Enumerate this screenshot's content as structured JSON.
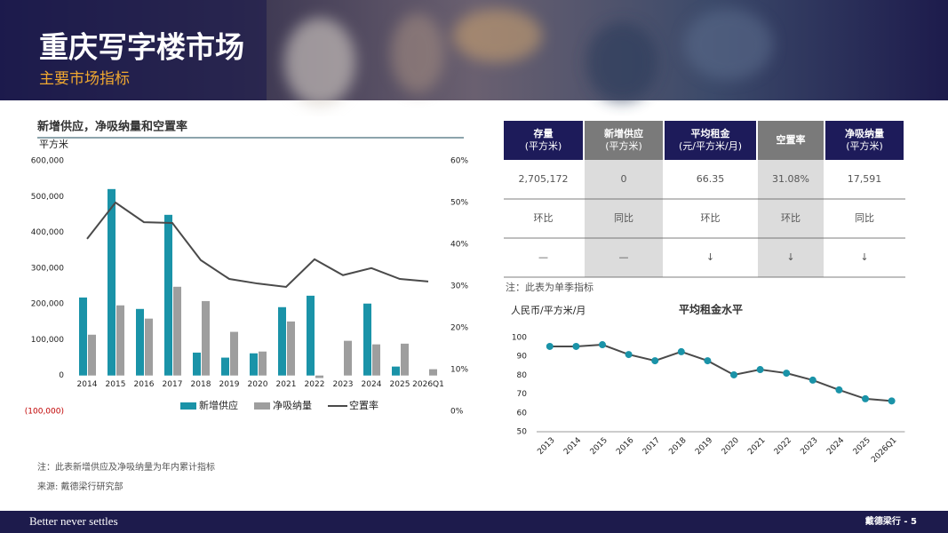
{
  "header": {
    "title": "重庆写字楼市场",
    "subtitle": "主要市场指标"
  },
  "chart_data": [
    {
      "type": "bar",
      "title": "新增供应，净吸纳量和空置率",
      "y_label": "平方米",
      "categories": [
        "2014",
        "2015",
        "2016",
        "2017",
        "2018",
        "2019",
        "2020",
        "2021",
        "2022",
        "2023",
        "2024",
        "2025",
        "2026Q1"
      ],
      "series": [
        {
          "name": "新增供应",
          "color": "#1a93a8",
          "values": [
            218000,
            521000,
            186000,
            449000,
            64000,
            50000,
            62000,
            191000,
            223000,
            0,
            201000,
            25000,
            0
          ]
        },
        {
          "name": "净吸纳量",
          "color": "#9e9e9e",
          "values": [
            114000,
            196000,
            159000,
            248000,
            208000,
            122000,
            67000,
            151000,
            -7000,
            97000,
            87000,
            89000,
            17591
          ]
        },
        {
          "name": "空置率",
          "color": "#4a4a4a",
          "type": "line",
          "axis": "y2",
          "values": [
            41.3,
            50.0,
            45.3,
            45.1,
            36.2,
            31.7,
            30.6,
            29.8,
            36.4,
            32.6,
            34.3,
            31.7,
            31.08
          ]
        }
      ],
      "ylim": [
        -100000,
        600000
      ],
      "yticks": [
        {
          "value": -100000,
          "label": "(100,000)"
        },
        0,
        {
          "value": 100000,
          "label": "100,000"
        },
        {
          "value": 200000,
          "label": "200,000"
        },
        {
          "value": 300000,
          "label": "300,000"
        },
        {
          "value": 400000,
          "label": "400,000"
        },
        {
          "value": 500000,
          "label": "500,000"
        },
        {
          "value": 600000,
          "label": "600,000"
        }
      ],
      "y2lim": [
        0,
        60
      ],
      "y2ticks": [
        {
          "value": 0,
          "label": "0%"
        },
        {
          "value": 10,
          "label": "10%"
        },
        {
          "value": 20,
          "label": "20%"
        },
        {
          "value": 30,
          "label": "30%"
        },
        {
          "value": 40,
          "label": "40%"
        },
        {
          "value": 50,
          "label": "50%"
        },
        {
          "value": 60,
          "label": "60%"
        }
      ],
      "legend": "bottom",
      "grid": false
    },
    {
      "type": "line",
      "title": "平均租金水平",
      "y_label": "人民币/平方米/月",
      "categories": [
        "2013",
        "2014",
        "2015",
        "2016",
        "2017",
        "2018",
        "2019",
        "2020",
        "2021",
        "2022",
        "2023",
        "2024",
        "2025",
        "2026Q1"
      ],
      "series": [
        {
          "name": null,
          "color": "#4a4a4a",
          "marker_color": "#1a93a8",
          "values": [
            95.3,
            95.3,
            96.2,
            91.0,
            87.7,
            92.5,
            87.7,
            80.2,
            83.0,
            81.1,
            77.4,
            72.2,
            67.5,
            66.35
          ]
        }
      ],
      "ylim": [
        50,
        100
      ],
      "yticks": [
        50,
        60,
        70,
        80,
        90,
        100
      ],
      "grid": false
    }
  ],
  "table": {
    "columns": [
      {
        "title": "存量",
        "unit": "(平方米)"
      },
      {
        "title": "新增供应",
        "unit": "(平方米)"
      },
      {
        "title": "平均租金",
        "unit": "(元/平方米/月)"
      },
      {
        "title": "空置率",
        "unit": null
      },
      {
        "title": "净吸纳量",
        "unit": "(平方米)"
      }
    ],
    "rows": [
      [
        "2,705,172",
        "0",
        "66.35",
        "31.08%",
        "17,591"
      ],
      [
        "环比",
        "同比",
        "环比",
        "环比",
        "同比"
      ],
      [
        "—",
        "—",
        "↓",
        "↓",
        "↓"
      ]
    ],
    "note": "注：此表为单季指标"
  },
  "notes": [
    "注：此表新增供应及净吸纳量为年内累计指标",
    "来源: 戴德梁行研究部"
  ],
  "footer": {
    "slogan": "Better never settles",
    "page": "戴德梁行 - 5"
  }
}
